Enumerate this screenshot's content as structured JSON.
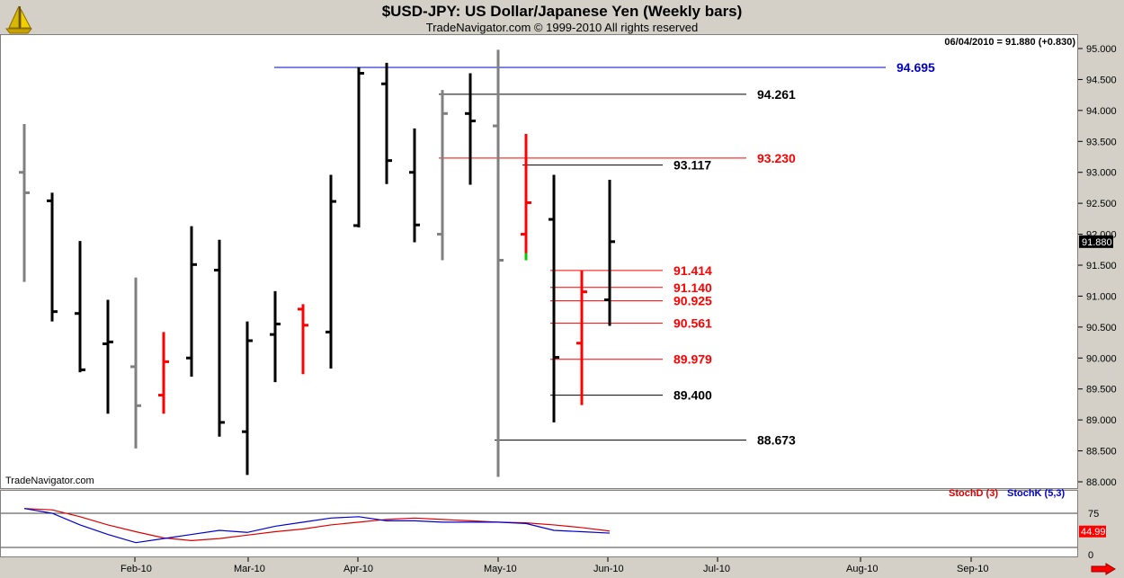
{
  "header": {
    "title": "$USD-JPY:  US Dollar/Japanese Yen  (Weekly bars)",
    "subtitle": "TradeNavigator.com © 1999-2010 All rights reserved",
    "last_readout": "06/04/2010 = 91.880 (+0.830)",
    "watermark": "TradeNavigator.com"
  },
  "colors": {
    "black_bar": "#000000",
    "gray_bar": "#808080",
    "red_bar": "#ff0000",
    "green_tick": "#00cc00",
    "blue_level": "#0000cc",
    "stoch_d": "#dd0000",
    "stoch_k": "#0000cc",
    "price_box": "#000000",
    "stoch_box": "#ff0000"
  },
  "chart_data": [
    {
      "type": "ohlc",
      "title": "$USD-JPY:  US Dollar/Japanese Yen  (Weekly bars)",
      "ylim": [
        88.0,
        95.0
      ],
      "y_ticks": [
        "95.000",
        "94.500",
        "94.000",
        "93.500",
        "93.000",
        "92.500",
        "92.000",
        "91.500",
        "91.000",
        "90.500",
        "90.000",
        "89.500",
        "89.000",
        "88.500",
        "88.000"
      ],
      "x_ticks": [
        "Feb-10",
        "Mar-10",
        "Apr-10",
        "May-10",
        "Jun-10",
        "Jul-10",
        "Aug-10",
        "Sep-10"
      ],
      "last_price_label": "91.880",
      "bars": [
        {
          "o": 93.0,
          "h": 93.78,
          "l": 91.23,
          "c": 92.67,
          "color": "gray"
        },
        {
          "o": 92.54,
          "h": 92.67,
          "l": 90.59,
          "c": 90.75,
          "color": "black"
        },
        {
          "o": 90.72,
          "h": 91.89,
          "l": 89.77,
          "c": 89.81,
          "color": "black"
        },
        {
          "o": 90.23,
          "h": 90.94,
          "l": 89.1,
          "c": 90.26,
          "color": "black"
        },
        {
          "o": 89.86,
          "h": 91.3,
          "l": 88.54,
          "c": 89.23,
          "color": "gray"
        },
        {
          "o": 89.4,
          "h": 90.42,
          "l": 89.1,
          "c": 89.94,
          "color": "red"
        },
        {
          "o": 90.0,
          "h": 92.13,
          "l": 89.7,
          "c": 91.51,
          "color": "black"
        },
        {
          "o": 91.42,
          "h": 91.91,
          "l": 88.73,
          "c": 88.96,
          "color": "black"
        },
        {
          "o": 88.81,
          "h": 90.59,
          "l": 88.11,
          "c": 90.28,
          "color": "black"
        },
        {
          "o": 90.38,
          "h": 91.08,
          "l": 89.61,
          "c": 90.55,
          "color": "black"
        },
        {
          "o": 90.79,
          "h": 90.87,
          "l": 89.74,
          "c": 90.53,
          "color": "red"
        },
        {
          "o": 90.42,
          "h": 92.96,
          "l": 89.83,
          "c": 92.53,
          "color": "black"
        },
        {
          "o": 92.14,
          "h": 94.7,
          "l": 92.11,
          "c": 94.6,
          "color": "black"
        },
        {
          "o": 94.43,
          "h": 94.77,
          "l": 92.81,
          "c": 93.19,
          "color": "black"
        },
        {
          "o": 93.0,
          "h": 93.71,
          "l": 91.87,
          "c": 92.15,
          "color": "black"
        },
        {
          "o": 92.0,
          "h": 94.33,
          "l": 91.58,
          "c": 93.95,
          "color": "gray"
        },
        {
          "o": 93.95,
          "h": 94.6,
          "l": 92.8,
          "c": 93.83,
          "color": "black"
        },
        {
          "o": 93.75,
          "h": 94.98,
          "l": 88.08,
          "c": 91.58,
          "color": "gray"
        },
        {
          "o": 92.0,
          "h": 93.62,
          "l": 91.58,
          "c": 92.51,
          "color": "red"
        },
        {
          "o": 92.24,
          "h": 92.96,
          "l": 88.96,
          "c": 90.01,
          "color": "black"
        },
        {
          "o": 90.24,
          "h": 91.41,
          "l": 89.24,
          "c": 91.07,
          "color": "red"
        },
        {
          "o": 90.94,
          "h": 92.88,
          "l": 90.52,
          "c": 91.88,
          "color": "black"
        }
      ],
      "levels": [
        {
          "value": 94.695,
          "label": "94.695",
          "color": "blue",
          "from_bar": 9
        },
        {
          "value": 94.261,
          "label": "94.261",
          "color": "black",
          "from_bar": 15
        },
        {
          "value": 93.23,
          "label": "93.230",
          "color": "red",
          "from_bar": 15
        },
        {
          "value": 93.117,
          "label": "93.117",
          "color": "black",
          "from_bar": 18
        },
        {
          "value": 91.414,
          "label": "91.414",
          "color": "red",
          "from_bar": 19
        },
        {
          "value": 91.14,
          "label": "91.140",
          "color": "red",
          "from_bar": 19
        },
        {
          "value": 90.925,
          "label": "90.925",
          "color": "red",
          "from_bar": 19
        },
        {
          "value": 90.561,
          "label": "90.561",
          "color": "red",
          "from_bar": 19
        },
        {
          "value": 89.979,
          "label": "89.979",
          "color": "red",
          "from_bar": 19
        },
        {
          "value": 89.4,
          "label": "89.400",
          "color": "black",
          "from_bar": 19
        },
        {
          "value": 88.673,
          "label": "88.673",
          "color": "black",
          "from_bar": 17
        }
      ]
    },
    {
      "type": "line",
      "ylim": [
        0,
        100
      ],
      "y_ticks": [
        "75",
        "0"
      ],
      "reference_lines": [
        75,
        25
      ],
      "last_value_label": "44.99",
      "series": [
        {
          "name": "StochD (3)",
          "color": "red",
          "values": [
            82,
            80,
            70,
            58,
            48,
            39,
            35,
            38,
            43,
            48,
            52,
            58,
            62,
            66,
            68,
            66,
            64,
            62,
            61,
            58,
            54,
            49
          ]
        },
        {
          "name": "StochK (5,3)",
          "color": "blue",
          "values": [
            82,
            75,
            58,
            44,
            32,
            38,
            44,
            50,
            47,
            56,
            62,
            68,
            70,
            64,
            64,
            62,
            62,
            62,
            60,
            50,
            48,
            46
          ]
        }
      ]
    }
  ]
}
